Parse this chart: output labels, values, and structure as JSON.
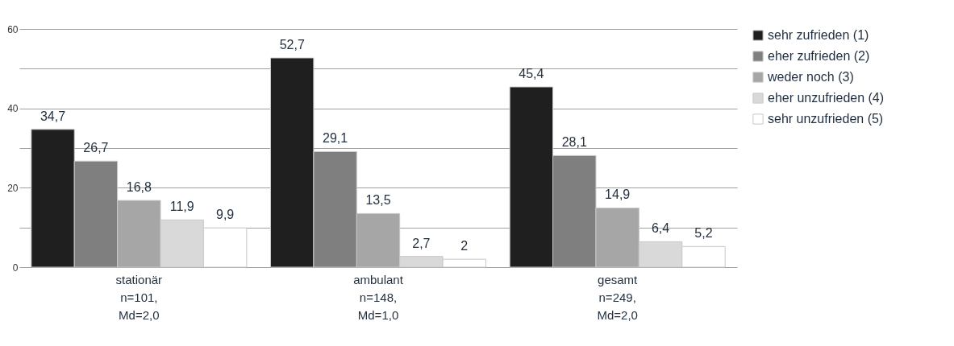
{
  "chart_data": {
    "type": "bar",
    "categories": [
      "stationär\nn=101,\nMd=2,0",
      "ambulant\nn=148,\nMd=1,0",
      "gesamt\nn=249,\nMd=2,0"
    ],
    "series": [
      {
        "name": "sehr zufrieden (1)",
        "color": "#1f1f1f",
        "values": [
          34.7,
          52.7,
          45.4
        ],
        "value_labels": [
          "34,7",
          "52,7",
          "45,4"
        ]
      },
      {
        "name": "eher zufrieden (2)",
        "color": "#7f7f7f",
        "values": [
          26.7,
          29.1,
          28.1
        ],
        "value_labels": [
          "26,7",
          "29,1",
          "28,1"
        ]
      },
      {
        "name": "weder noch (3)",
        "color": "#a6a6a6",
        "values": [
          16.8,
          13.5,
          14.9
        ],
        "value_labels": [
          "16,8",
          "13,5",
          "14,9"
        ]
      },
      {
        "name": "eher unzufrieden (4)",
        "color": "#d9d9d9",
        "values": [
          11.9,
          2.7,
          6.4
        ],
        "value_labels": [
          "11,9",
          "2,7",
          "6,4"
        ]
      },
      {
        "name": "sehr unzufrieden (5)",
        "color": "#ffffff",
        "values": [
          9.9,
          2,
          5.2
        ],
        "value_labels": [
          "9,9",
          "2",
          "5,2"
        ]
      }
    ],
    "ylim": [
      0,
      60
    ],
    "yticks": [
      0,
      {
        "value": 10,
        "label": null
      },
      20,
      {
        "value": 30,
        "label": null
      },
      40,
      {
        "value": 50,
        "label": null
      },
      60
    ],
    "grid": "y",
    "legend": "right"
  }
}
